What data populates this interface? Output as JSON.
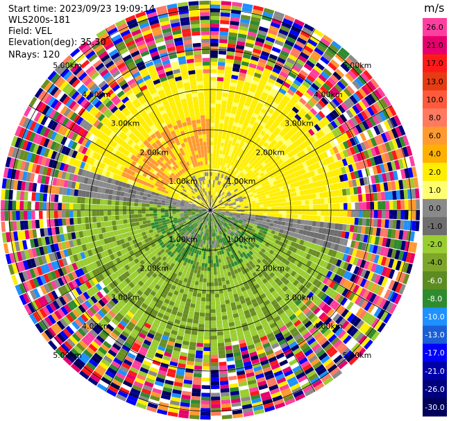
{
  "header": {
    "start_time": "Start time: 2023/09/23 19:09:14",
    "instrument": "WLS200s-181",
    "field": "Field: VEL",
    "elevation": "Elevation(deg): 35.30",
    "nrays": "NRays: 120"
  },
  "range_rings": [
    "1.00km",
    "2.00km",
    "3.00km",
    "4.00km",
    "5.00km"
  ],
  "colorbar": {
    "unit": "m/s",
    "ticks": [
      "26.0",
      "21.0",
      "17.0",
      "13.0",
      "10.0",
      "8.0",
      "6.0",
      "4.0",
      "2.0",
      "1.0",
      "0.0",
      "-1.0",
      "-2.0",
      "-4.0",
      "-6.0",
      "-8.0",
      "-10.0",
      "-13.0",
      "-17.0",
      "-21.0",
      "-26.0",
      "-30.0"
    ],
    "colors": [
      "#ff3fa0",
      "#e6006e",
      "#ff1a1a",
      "#e63c14",
      "#ff5a3c",
      "#ff7a60",
      "#ff9a30",
      "#ffb000",
      "#ffee00",
      "#ffff70",
      "#8a8a8a",
      "#6e6e6e",
      "#9acd32",
      "#7ea62a",
      "#5c8c20",
      "#2e8b2e",
      "#1e90ff",
      "#1a5fd6",
      "#0000ff",
      "#0000a8",
      "#000080",
      "#00005a"
    ]
  }
}
